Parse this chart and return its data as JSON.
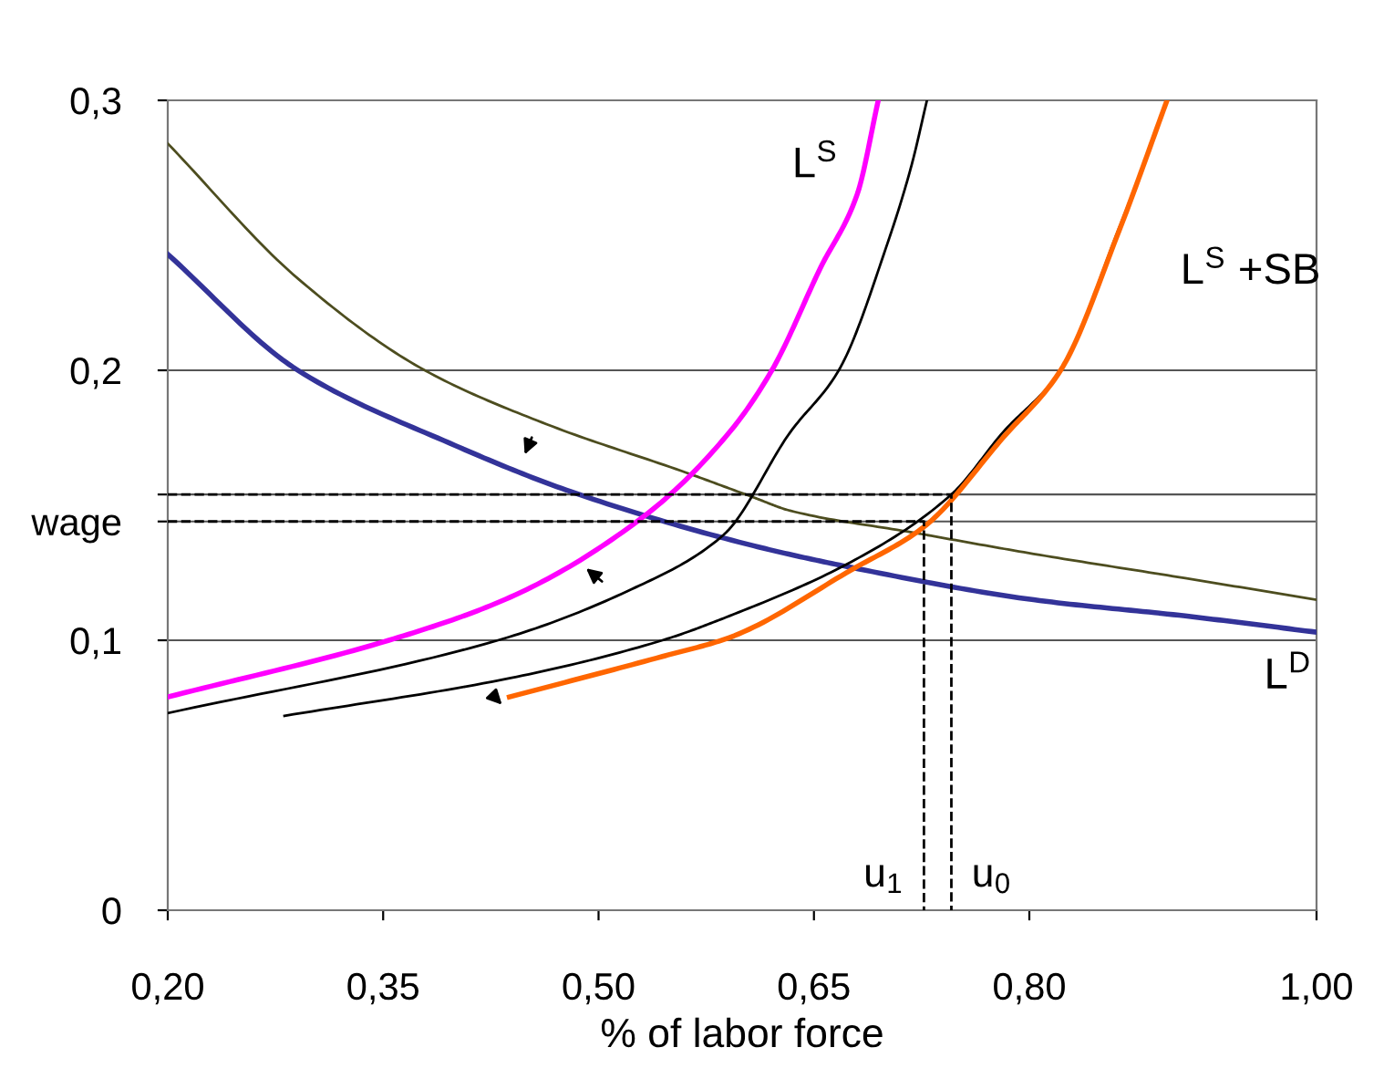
{
  "chart_data": {
    "type": "line",
    "xlabel": "% of labor force",
    "xlim": [
      0.2,
      1.0
    ],
    "ylim": [
      0,
      0.3
    ],
    "xticks": [
      {
        "value": 0.2,
        "label": "0,20"
      },
      {
        "value": 0.35,
        "label": "0,35"
      },
      {
        "value": 0.5,
        "label": "0,50"
      },
      {
        "value": 0.65,
        "label": "0,65"
      },
      {
        "value": 0.8,
        "label": "0,80"
      },
      {
        "value": 1.0,
        "label": "1,00"
      }
    ],
    "yticks": [
      0,
      {
        "value": 0.1,
        "label": "0,1"
      },
      {
        "value": 0.144,
        "label": "wage"
      },
      {
        "value": 0.154,
        "label": null
      },
      {
        "value": 0.2,
        "label": "0,2"
      },
      {
        "value": 0.3,
        "label": "0,3"
      }
    ],
    "grid": "y",
    "legend": false,
    "series": [
      {
        "color": "#4d4d1f",
        "x": [
          0.2,
          0.2906,
          0.379,
          0.464,
          0.5615,
          0.6076,
          0.6334,
          0.718,
          0.803,
          0.9086,
          1.0
        ],
        "values": [
          0.284,
          0.234,
          0.2,
          0.18,
          0.162,
          0.153,
          0.148,
          0.14,
          0.132,
          0.123,
          0.115
        ]
      },
      {
        "name": "L$^{D}$",
        "color": "#333399",
        "x": [
          0.2,
          0.2906,
          0.3964,
          0.481,
          0.608,
          0.6758,
          0.803,
          0.9086,
          1.0
        ],
        "values": [
          0.243,
          0.2,
          0.173,
          0.155,
          0.135,
          0.127,
          0.115,
          0.109,
          0.103
        ]
      },
      {
        "name": "L$^{S}$",
        "color": "#ff00ff",
        "x": [
          0.2,
          0.354,
          0.4387,
          0.5318,
          0.5911,
          0.6207,
          0.6546,
          0.68,
          0.6948
        ],
        "values": [
          0.079,
          0.1,
          0.116,
          0.146,
          0.177,
          0.2,
          0.238,
          0.265,
          0.3
        ]
      },
      {
        "color": "#000000",
        "x": [
          0.2,
          0.43,
          0.5234,
          0.587,
          0.6334,
          0.6673,
          0.7012,
          0.718,
          0.7287
        ],
        "values": [
          0.073,
          0.1,
          0.119,
          0.139,
          0.177,
          0.2,
          0.247,
          0.276,
          0.3
        ]
      },
      {
        "color": "#000000",
        "x": [
          0.2813,
          0.4387,
          0.5445,
          0.5911,
          0.6758,
          0.7457,
          0.7816,
          0.8218,
          0.862,
          0.883,
          0.8959
        ],
        "values": [
          0.072,
          0.086,
          0.1,
          0.109,
          0.129,
          0.154,
          0.177,
          0.2,
          0.252,
          0.281,
          0.3
        ]
      },
      {
        "name": "L$^{S}$ +SB",
        "color": "#ff6600",
        "x": [
          0.4379,
          0.5445,
          0.5911,
          0.6758,
          0.7266,
          0.7816,
          0.8218,
          0.862,
          0.8959
        ],
        "values": [
          0.079,
          0.094,
          0.101,
          0.126,
          0.142,
          0.175,
          0.2,
          0.251,
          0.3
        ]
      },
      {
        "name": "u$_{0}$",
        "color": "#000000",
        "line_style": "dashed",
        "x": [
          0.2,
          0.7457,
          0.7457
        ],
        "values": [
          0.154,
          0.154,
          0
        ]
      },
      {
        "name": "u$_{1}$",
        "color": "#000000",
        "line_style": "dashed",
        "x": [
          0.2,
          0.7266,
          0.7266
        ],
        "values": [
          0.144,
          0.144,
          0
        ]
      }
    ]
  }
}
